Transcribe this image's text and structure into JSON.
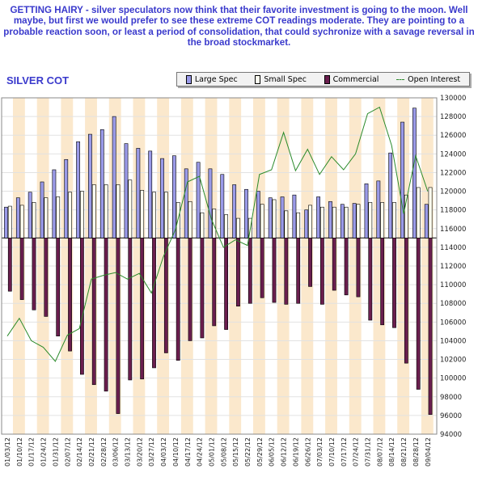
{
  "headline": "GETTING HAIRY - silver speculators now think that their favorite investment is going to the moon. Well maybe, but first we would prefer to see these extreme COT readings moderate. They are pointing to a probable reaction soon, or least a period of consolidation, that could sychronize with a savage reversal in the broad stockmarket.",
  "colors": {
    "headline": "#3a3acc",
    "large_spec": "#9a9ae8",
    "small_spec": "#fffff0",
    "commercial": "#6a1e4e",
    "open_interest": "#2a8a2a",
    "band": "#fbe8cc"
  },
  "chart_data": {
    "type": "bar",
    "title": "SILVER COT",
    "legend": {
      "placement": "top-right",
      "entries": [
        "Large Spec",
        "Small Spec",
        "Commercial",
        "Open Interest"
      ]
    },
    "ylim": [
      94000,
      130000
    ],
    "yticks": [
      "130000",
      "128000",
      "126000",
      "124000",
      "122000",
      "120000",
      "118000",
      "116000",
      "114000",
      "112000",
      "110000",
      "108000",
      "106000",
      "104000",
      "102000",
      "100000",
      "98000",
      "96000",
      "94000"
    ],
    "categories": [
      "01/03/12",
      "01/10/12",
      "01/17/12",
      "01/24/12",
      "01/31/12",
      "02/07/12",
      "02/14/12",
      "02/21/12",
      "02/28/12",
      "03/06/12",
      "03/13/12",
      "03/20/12",
      "03/27/12",
      "04/03/12",
      "04/10/12",
      "04/17/12",
      "04/24/12",
      "05/01/12",
      "05/08/12",
      "05/15/12",
      "05/22/12",
      "05/29/12",
      "06/05/12",
      "06/12/12",
      "06/19/12",
      "06/26/12",
      "07/03/12",
      "07/10/12",
      "07/17/12",
      "07/24/12",
      "07/31/12",
      "08/07/12",
      "08/14/12",
      "08/21/12",
      "08/28/12",
      "09/04/12"
    ],
    "xticks": [
      "01/03/12",
      "01/17/12",
      "01/31/12",
      "02/14/12",
      "02/28/12",
      "03/13/12",
      "03/27/12",
      "04/10/12",
      "04/24/12",
      "05/08/12",
      "05/22/12",
      "06/05/12",
      "06/19/12",
      "07/03/12",
      "07/17/12",
      "07/31/12",
      "08/14/12",
      "08/28/12",
      "01/10/12",
      "01/24/12",
      "02/07/12",
      "02/21/12",
      "03/06/12",
      "03/20/12",
      "04/03/12",
      "04/17/12",
      "05/01/12",
      "05/15/12",
      "05/29/12",
      "06/12/12",
      "06/26/12",
      "07/10/12",
      "07/24/12",
      "08/07/12",
      "08/21/12",
      "09/04/12"
    ],
    "series": [
      {
        "name": "Large Spec",
        "values": [
          118300,
          119300,
          119900,
          121000,
          122300,
          123400,
          125300,
          126100,
          126600,
          128000,
          125100,
          124600,
          124300,
          123500,
          123800,
          122400,
          123100,
          122400,
          121800,
          120700,
          120200,
          120000,
          119300,
          119400,
          119600,
          118000,
          119400,
          118900,
          118600,
          118700,
          120800,
          121100,
          124100,
          127400,
          128900,
          118600
        ]
      },
      {
        "name": "Small Spec",
        "values": [
          118400,
          118500,
          118800,
          119300,
          119400,
          119900,
          120000,
          120700,
          120700,
          120700,
          121200,
          120100,
          119900,
          119900,
          118800,
          118900,
          117700,
          118100,
          117500,
          117100,
          117100,
          118600,
          119100,
          117900,
          117700,
          118500,
          118300,
          118300,
          118300,
          118600,
          118800,
          118800,
          118800,
          119600,
          120400,
          120400
        ]
      },
      {
        "name": "Commercial",
        "values": [
          109300,
          108400,
          107300,
          106600,
          104500,
          102900,
          100400,
          99300,
          98600,
          96200,
          99800,
          99900,
          101100,
          102700,
          101900,
          104000,
          104300,
          105600,
          105200,
          107700,
          108000,
          108600,
          108100,
          107900,
          108000,
          109800,
          107900,
          109400,
          108900,
          108700,
          106200,
          105700,
          105400,
          101600,
          98800,
          96100
        ]
      },
      {
        "name": "Open Interest",
        "values": [
          104500,
          106400,
          104000,
          103300,
          101800,
          104600,
          105300,
          110600,
          111000,
          111300,
          110600,
          111200,
          109100,
          113000,
          115900,
          121000,
          121600,
          117000,
          114000,
          114800,
          114200,
          121800,
          122300,
          126300,
          122200,
          124500,
          121800,
          123700,
          122300,
          124000,
          128300,
          129000,
          124900,
          117600,
          123800,
          120000
        ]
      }
    ],
    "grid": true,
    "xlabel": "",
    "ylabel": ""
  }
}
